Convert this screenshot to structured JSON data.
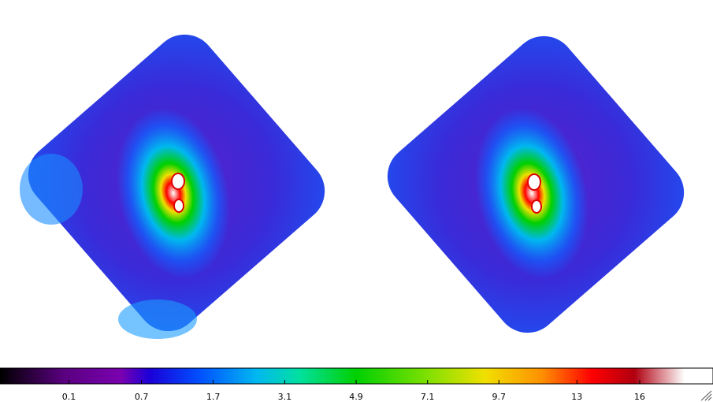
{
  "colorbar": {
    "scale": "sqrt",
    "xlim": [
      -0.087,
      19.9
    ],
    "ticks": [
      0.1,
      0.7,
      1.7,
      3.1,
      4.9,
      7.1,
      9.7,
      13,
      16
    ]
  }
}
